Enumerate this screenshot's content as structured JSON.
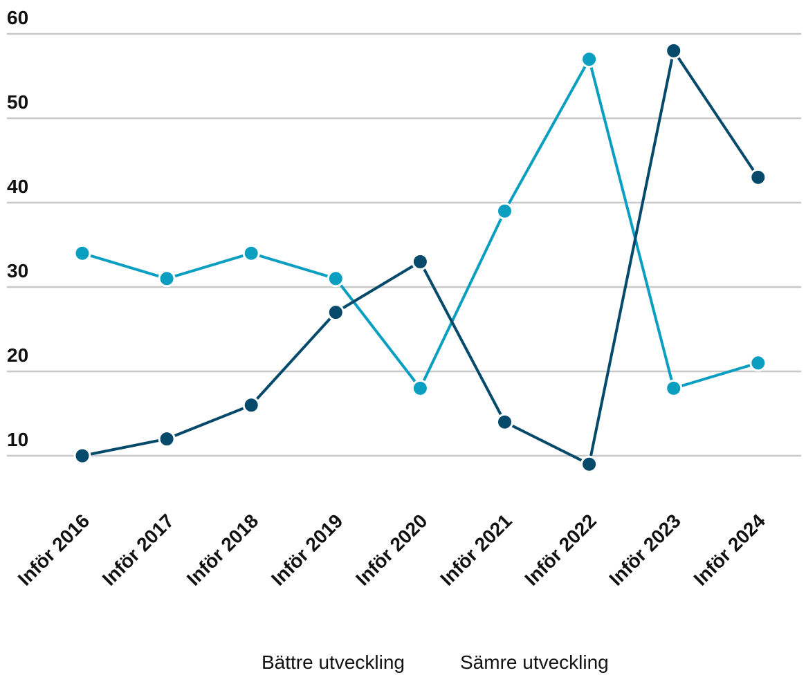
{
  "chart_data": {
    "type": "line",
    "categories": [
      "Inför 2016",
      "Inför 2017",
      "Inför 2018",
      "Inför 2019",
      "Inför 2020",
      "Inför 2021",
      "Inför 2022",
      "Inför 2023",
      "Inför 2024"
    ],
    "series": [
      {
        "name": "Bättre utveckling",
        "color": "#0a9fc1",
        "values": [
          34,
          31,
          34,
          31,
          18,
          39,
          57,
          18,
          21
        ]
      },
      {
        "name": "Sämre utveckling",
        "color": "#05496b",
        "values": [
          10,
          12,
          16,
          27,
          33,
          14,
          9,
          58,
          43
        ]
      }
    ],
    "ylim": [
      5,
      60
    ],
    "yticks": [
      10,
      20,
      30,
      40,
      50,
      60
    ],
    "grid": true
  }
}
